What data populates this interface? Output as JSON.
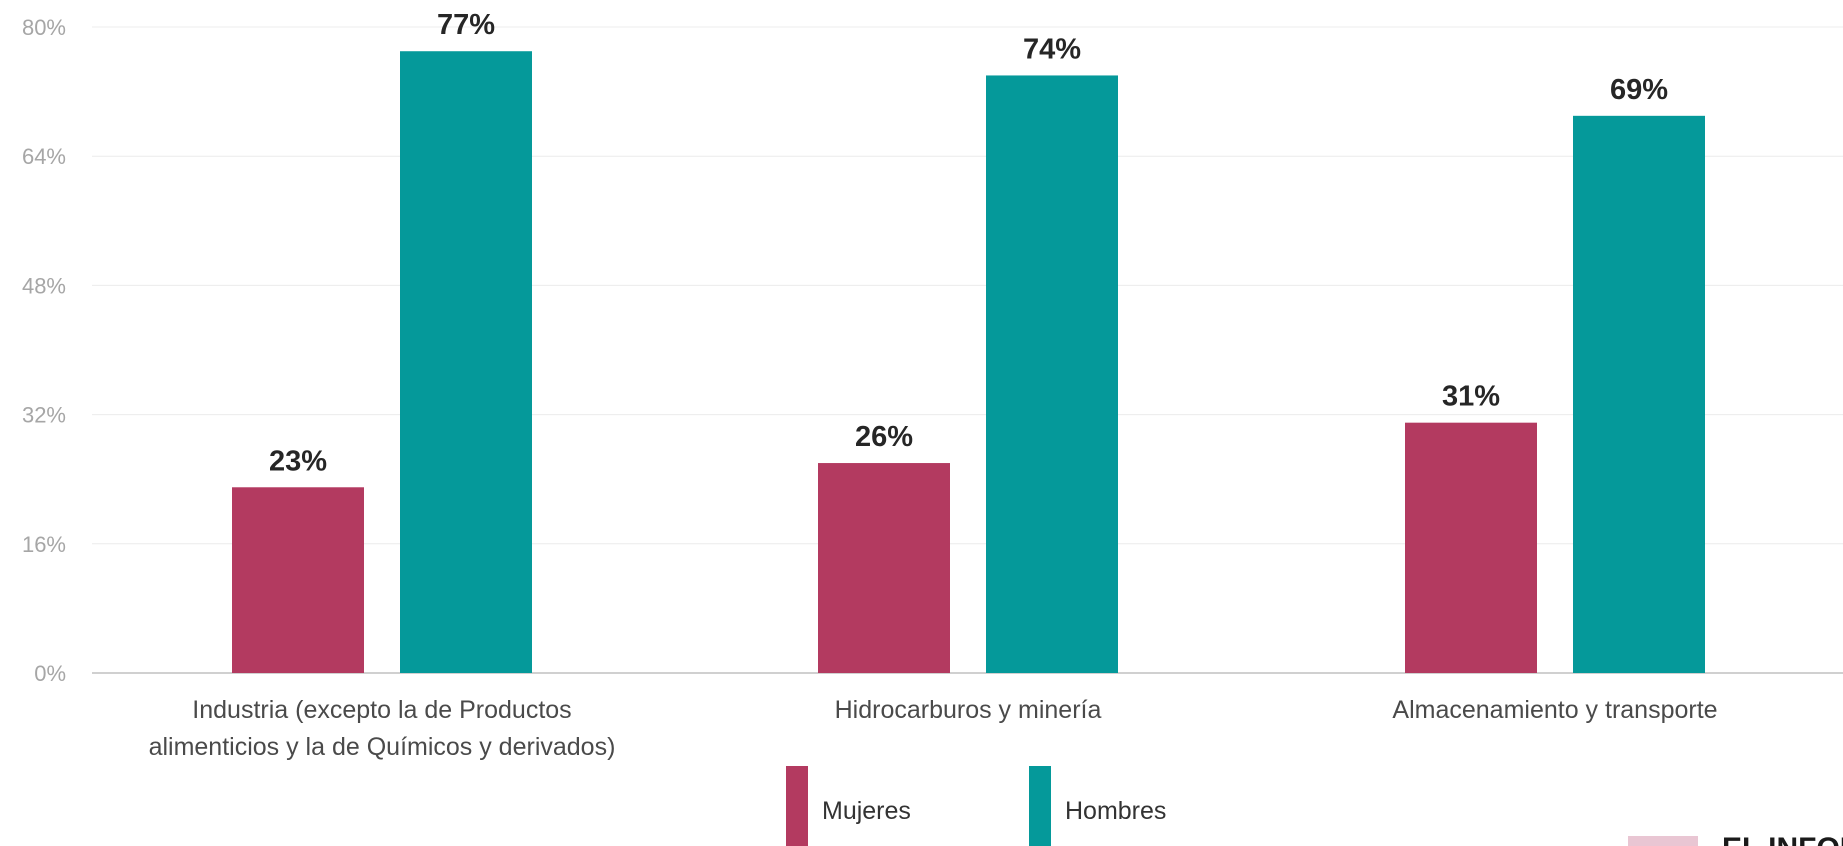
{
  "chart_data": {
    "type": "bar",
    "categories": [
      [
        "Industria (excepto la de Productos",
        "alimenticios y la de Químicos y derivados)"
      ],
      [
        "Hidrocarburos y minería"
      ],
      [
        "Almacenamiento y transporte"
      ]
    ],
    "series": [
      {
        "name": "Mujeres",
        "values": [
          23,
          26,
          31
        ],
        "labels": [
          "23%",
          "26%",
          "31%"
        ],
        "color": "#b33a60"
      },
      {
        "name": "Hombres",
        "values": [
          77,
          74,
          69
        ],
        "labels": [
          "77%",
          "74%",
          "69%"
        ],
        "color": "#05999a"
      }
    ],
    "yticks": [
      0,
      16,
      32,
      48,
      64,
      80
    ],
    "ytick_labels": [
      "0%",
      "16%",
      "32%",
      "48%",
      "64%",
      "80%"
    ],
    "ylim": [
      0,
      80
    ],
    "grid": true,
    "legend": "bottom-center",
    "title": "",
    "xlabel": "",
    "ylabel": ""
  },
  "logo": {
    "text": "EL INFOR",
    "accent": "#b33a60"
  }
}
